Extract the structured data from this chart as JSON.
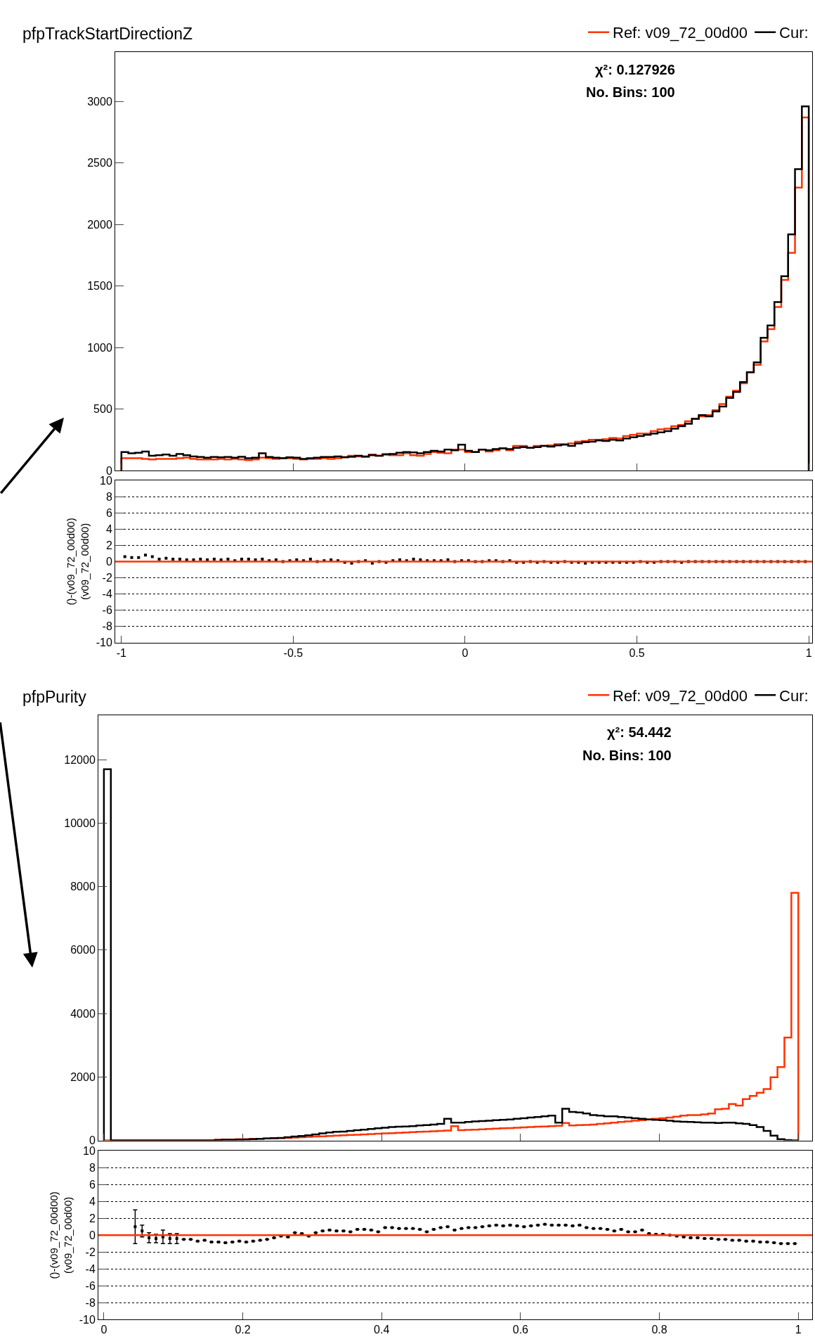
{
  "chart_data": [
    {
      "type": "histogram",
      "title": "pfpTrackStartDirectionZ",
      "legend": "top right",
      "grid": false,
      "tick_labels": "y",
      "annotations": [
        "χ²: 0.127926",
        "No. Bins: 100"
      ],
      "xlim": [
        -1.018,
        1.01
      ],
      "xticks": [
        -1,
        -0.5,
        0,
        0.5,
        1
      ],
      "ylim": [
        0,
        3400
      ],
      "yticks": [
        0,
        500,
        1000,
        1500,
        2000,
        2500,
        3000
      ],
      "bins": [
        -1,
        -0.98,
        -0.96,
        -0.94,
        -0.92,
        -0.9,
        -0.88,
        -0.86,
        -0.84,
        -0.82,
        -0.8,
        -0.78,
        -0.76,
        -0.74,
        -0.72,
        -0.7,
        -0.68,
        -0.66,
        -0.64,
        -0.62,
        -0.6,
        -0.58,
        -0.56,
        -0.54,
        -0.52,
        -0.5,
        -0.48,
        -0.46,
        -0.44,
        -0.42,
        -0.4,
        -0.38,
        -0.36,
        -0.34,
        -0.32,
        -0.3,
        -0.28,
        -0.26,
        -0.24,
        -0.22,
        -0.2,
        -0.18,
        -0.16,
        -0.14,
        -0.12,
        -0.1,
        -0.08,
        -0.06,
        -0.04,
        -0.02,
        0,
        0.02,
        0.04,
        0.06,
        0.08,
        0.1,
        0.12,
        0.14,
        0.16,
        0.18,
        0.2,
        0.22,
        0.24,
        0.26,
        0.28,
        0.3,
        0.32,
        0.34,
        0.36,
        0.38,
        0.4,
        0.42,
        0.44,
        0.46,
        0.48,
        0.5,
        0.52,
        0.54,
        0.56,
        0.58,
        0.6,
        0.62,
        0.64,
        0.66,
        0.68,
        0.7,
        0.72,
        0.74,
        0.76,
        0.78,
        0.8,
        0.82,
        0.84,
        0.86,
        0.88,
        0.9,
        0.92,
        0.94,
        0.96,
        0.98,
        1
      ],
      "series": [
        {
          "name": "Ref: v09_72_00d00",
          "color": "#ff3300",
          "values": [
            100,
            100,
            100,
            95,
            90,
            95,
            95,
            95,
            100,
            105,
            95,
            90,
            90,
            90,
            95,
            90,
            95,
            90,
            85,
            90,
            105,
            100,
            95,
            100,
            100,
            95,
            90,
            95,
            95,
            100,
            95,
            100,
            110,
            120,
            115,
            110,
            130,
            120,
            135,
            125,
            125,
            140,
            125,
            120,
            135,
            150,
            145,
            140,
            170,
            170,
            150,
            150,
            170,
            155,
            165,
            180,
            165,
            200,
            200,
            185,
            200,
            200,
            205,
            215,
            215,
            220,
            235,
            240,
            250,
            250,
            255,
            265,
            260,
            280,
            290,
            300,
            300,
            320,
            335,
            340,
            360,
            370,
            400,
            420,
            440,
            450,
            490,
            540,
            600,
            650,
            710,
            800,
            860,
            1050,
            1150,
            1330,
            1550,
            1770,
            2300,
            2870
          ]
        },
        {
          "name": "Cur:",
          "color": "#000000",
          "values": [
            150,
            140,
            145,
            155,
            120,
            125,
            130,
            120,
            135,
            125,
            115,
            110,
            105,
            110,
            108,
            110,
            105,
            112,
            100,
            105,
            140,
            110,
            105,
            100,
            108,
            105,
            95,
            100,
            105,
            110,
            110,
            115,
            108,
            112,
            120,
            115,
            125,
            120,
            130,
            135,
            145,
            150,
            148,
            140,
            150,
            160,
            155,
            170,
            165,
            210,
            160,
            150,
            170,
            165,
            175,
            180,
            175,
            185,
            190,
            185,
            190,
            200,
            195,
            205,
            210,
            200,
            220,
            230,
            235,
            245,
            240,
            250,
            245,
            260,
            270,
            280,
            290,
            300,
            310,
            320,
            340,
            360,
            380,
            420,
            450,
            440,
            480,
            520,
            590,
            640,
            720,
            800,
            880,
            1080,
            1180,
            1370,
            1580,
            1920,
            2450,
            2960
          ]
        }
      ]
    },
    {
      "type": "scatter",
      "marker": "square",
      "grid": "y",
      "ylabel": "()-(v09_72_00d00)\n(v09_72_00d00)",
      "xlim": [
        -1.018,
        1.01
      ],
      "xticks": [
        -1,
        -0.5,
        0,
        0.5,
        1
      ],
      "ylim": [
        -10,
        10
      ],
      "yticks": [
        -10,
        -8,
        -6,
        -4,
        -2,
        0,
        2,
        4,
        6,
        8,
        10
      ],
      "ref_lines": [
        {
          "axis": "y",
          "value": 0,
          "color": "#ff3300"
        }
      ],
      "x": [
        -0.99,
        -0.97,
        -0.95,
        -0.93,
        -0.91,
        -0.89,
        -0.87,
        -0.85,
        -0.83,
        -0.81,
        -0.79,
        -0.77,
        -0.75,
        -0.73,
        -0.71,
        -0.69,
        -0.67,
        -0.65,
        -0.63,
        -0.61,
        -0.59,
        -0.57,
        -0.55,
        -0.53,
        -0.51,
        -0.49,
        -0.47,
        -0.45,
        -0.43,
        -0.41,
        -0.39,
        -0.37,
        -0.35,
        -0.33,
        -0.31,
        -0.29,
        -0.27,
        -0.25,
        -0.23,
        -0.21,
        -0.19,
        -0.17,
        -0.15,
        -0.13,
        -0.11,
        -0.09,
        -0.07,
        -0.05,
        -0.03,
        -0.01,
        0.01,
        0.03,
        0.05,
        0.07,
        0.09,
        0.11,
        0.13,
        0.15,
        0.17,
        0.19,
        0.21,
        0.23,
        0.25,
        0.27,
        0.29,
        0.31,
        0.33,
        0.35,
        0.37,
        0.39,
        0.41,
        0.43,
        0.45,
        0.47,
        0.49,
        0.51,
        0.53,
        0.55,
        0.57,
        0.59,
        0.61,
        0.63,
        0.65,
        0.67,
        0.69,
        0.71,
        0.73,
        0.75,
        0.77,
        0.79,
        0.81,
        0.83,
        0.85,
        0.87,
        0.89,
        0.91,
        0.93,
        0.95,
        0.97,
        0.99
      ],
      "series": [
        {
          "color": "#000000",
          "values": [
            0.6,
            0.5,
            0.5,
            0.8,
            0.6,
            0.3,
            0.4,
            0.3,
            0.3,
            0.2,
            0.2,
            0.3,
            0.2,
            0.3,
            0.2,
            0.3,
            0.1,
            0.3,
            0.3,
            0.2,
            0.3,
            0.1,
            0.2,
            0.0,
            0.1,
            0.2,
            0.1,
            0.3,
            0.0,
            0.1,
            0.2,
            0.1,
            -0.1,
            -0.2,
            0.0,
            0.1,
            -0.2,
            0.0,
            -0.1,
            0.1,
            0.2,
            0.1,
            0.3,
            0.2,
            0.1,
            0.1,
            0.1,
            0.2,
            0.0,
            0.1,
            0.1,
            0.0,
            0.0,
            0.1,
            0.1,
            0.0,
            0.1,
            -0.1,
            -0.1,
            0.0,
            -0.1,
            0.0,
            -0.1,
            -0.1,
            0.0,
            -0.1,
            -0.1,
            -0.2,
            -0.1,
            -0.1,
            -0.1,
            -0.1,
            -0.1,
            -0.1,
            -0.1,
            0.0,
            -0.1,
            -0.1,
            0.0,
            0.0,
            0.0,
            -0.1,
            0.0,
            0.0,
            0.0,
            0.0,
            0.0,
            0.0,
            0.0,
            0.0,
            0.0,
            0.0,
            0.0,
            0.0,
            0.0,
            0.0,
            0.0,
            0.0,
            0.0,
            0.0
          ]
        }
      ]
    },
    {
      "type": "histogram",
      "title": "pfpPurity",
      "legend": "top right",
      "grid": false,
      "tick_labels": "y",
      "annotations": [
        "χ²: 54.442",
        "No. Bins: 100"
      ],
      "xlim": [
        -0.008,
        1.02
      ],
      "xticks": [
        0,
        0.2,
        0.4,
        0.6,
        0.8,
        1
      ],
      "ylim": [
        0,
        13400
      ],
      "yticks": [
        0,
        2000,
        4000,
        6000,
        8000,
        10000,
        12000
      ],
      "bins": [
        0,
        0.01,
        0.02,
        0.03,
        0.04,
        0.05,
        0.06,
        0.07,
        0.08,
        0.09,
        0.1,
        0.11,
        0.12,
        0.13,
        0.14,
        0.15,
        0.16,
        0.17,
        0.18,
        0.19,
        0.2,
        0.21,
        0.22,
        0.23,
        0.24,
        0.25,
        0.26,
        0.27,
        0.28,
        0.29,
        0.3,
        0.31,
        0.32,
        0.33,
        0.34,
        0.35,
        0.36,
        0.37,
        0.38,
        0.39,
        0.4,
        0.41,
        0.42,
        0.43,
        0.44,
        0.45,
        0.46,
        0.47,
        0.48,
        0.49,
        0.5,
        0.51,
        0.52,
        0.53,
        0.54,
        0.55,
        0.56,
        0.57,
        0.58,
        0.59,
        0.6,
        0.61,
        0.62,
        0.63,
        0.64,
        0.65,
        0.66,
        0.67,
        0.68,
        0.69,
        0.7,
        0.71,
        0.72,
        0.73,
        0.74,
        0.75,
        0.76,
        0.77,
        0.78,
        0.79,
        0.8,
        0.81,
        0.82,
        0.83,
        0.84,
        0.85,
        0.86,
        0.87,
        0.88,
        0.89,
        0.9,
        0.91,
        0.92,
        0.93,
        0.94,
        0.95,
        0.96,
        0.97,
        0.98,
        0.99,
        1.0
      ],
      "series": [
        {
          "name": "Ref: v09_72_00d00",
          "color": "#ff3300",
          "values": [
            0,
            0,
            0,
            0,
            0,
            0,
            0,
            0,
            0,
            0,
            0,
            0,
            0,
            0,
            0,
            0,
            20,
            30,
            30,
            40,
            40,
            50,
            50,
            60,
            60,
            70,
            80,
            90,
            100,
            110,
            120,
            130,
            140,
            150,
            160,
            170,
            180,
            190,
            200,
            210,
            220,
            230,
            240,
            250,
            260,
            270,
            280,
            290,
            300,
            310,
            450,
            320,
            330,
            340,
            350,
            360,
            370,
            380,
            390,
            400,
            410,
            420,
            430,
            440,
            450,
            460,
            550,
            470,
            480,
            490,
            500,
            520,
            540,
            560,
            580,
            600,
            620,
            640,
            660,
            680,
            700,
            720,
            750,
            780,
            800,
            800,
            820,
            850,
            980,
            1000,
            1150,
            1100,
            1300,
            1400,
            1500,
            1620,
            1990,
            2310,
            3240,
            7800
          ]
        },
        {
          "name": "Cur:",
          "color": "#000000",
          "values": [
            11700,
            0,
            0,
            0,
            0,
            0,
            0,
            0,
            0,
            0,
            0,
            0,
            0,
            0,
            0,
            0,
            10,
            20,
            20,
            20,
            30,
            40,
            50,
            60,
            70,
            80,
            100,
            120,
            140,
            160,
            190,
            220,
            250,
            270,
            280,
            300,
            320,
            340,
            360,
            380,
            400,
            420,
            430,
            440,
            450,
            470,
            480,
            500,
            520,
            680,
            560,
            560,
            580,
            600,
            610,
            620,
            640,
            650,
            660,
            680,
            700,
            720,
            740,
            760,
            780,
            560,
            1000,
            900,
            880,
            850,
            800,
            780,
            760,
            760,
            740,
            720,
            700,
            680,
            660,
            650,
            640,
            620,
            600,
            590,
            580,
            570,
            560,
            560,
            550,
            560,
            560,
            540,
            520,
            480,
            420,
            300,
            150,
            40,
            10,
            0
          ]
        }
      ]
    },
    {
      "type": "scatter",
      "marker": "square",
      "grid": "y",
      "ylabel": "()-(v09_72_00d00)\n(v09_72_00d00)",
      "xlim": [
        -0.008,
        1.02
      ],
      "xticks": [
        0,
        0.2,
        0.4,
        0.6,
        0.8,
        1
      ],
      "ylim": [
        -10,
        10
      ],
      "yticks": [
        -10,
        -8,
        -6,
        -4,
        -2,
        0,
        2,
        4,
        6,
        8,
        10
      ],
      "ref_lines": [
        {
          "axis": "y",
          "value": 0,
          "color": "#ff3300"
        }
      ],
      "x": [
        0.045,
        0.055,
        0.065,
        0.075,
        0.085,
        0.095,
        0.105,
        0.115,
        0.125,
        0.135,
        0.145,
        0.155,
        0.165,
        0.175,
        0.185,
        0.195,
        0.205,
        0.215,
        0.225,
        0.235,
        0.245,
        0.255,
        0.265,
        0.275,
        0.285,
        0.295,
        0.305,
        0.315,
        0.325,
        0.335,
        0.345,
        0.355,
        0.365,
        0.375,
        0.385,
        0.395,
        0.405,
        0.415,
        0.425,
        0.435,
        0.445,
        0.455,
        0.465,
        0.475,
        0.485,
        0.495,
        0.505,
        0.515,
        0.525,
        0.535,
        0.545,
        0.555,
        0.565,
        0.575,
        0.585,
        0.595,
        0.605,
        0.615,
        0.625,
        0.635,
        0.645,
        0.655,
        0.665,
        0.675,
        0.685,
        0.695,
        0.705,
        0.715,
        0.725,
        0.735,
        0.745,
        0.755,
        0.765,
        0.775,
        0.785,
        0.795,
        0.805,
        0.815,
        0.825,
        0.835,
        0.845,
        0.855,
        0.865,
        0.875,
        0.885,
        0.895,
        0.905,
        0.915,
        0.925,
        0.935,
        0.945,
        0.955,
        0.965,
        0.975,
        0.985,
        0.995
      ],
      "series": [
        {
          "color": "#000000",
          "values": [
            1.0,
            0.5,
            -0.3,
            -0.4,
            -0.2,
            -0.4,
            -0.4,
            -0.5,
            -0.5,
            -0.7,
            -0.6,
            -0.8,
            -0.8,
            -0.9,
            -0.8,
            -0.7,
            -0.8,
            -0.7,
            -0.6,
            -0.5,
            -0.3,
            -0.1,
            -0.2,
            0.3,
            0.2,
            -0.1,
            0.3,
            0.5,
            0.6,
            0.5,
            0.5,
            0.4,
            0.7,
            0.7,
            0.6,
            0.4,
            0.9,
            0.9,
            0.8,
            0.8,
            0.8,
            0.7,
            0.4,
            0.7,
            0.9,
            1.0,
            0.6,
            0.8,
            0.9,
            0.9,
            1.0,
            1.1,
            1.2,
            1.1,
            1.2,
            1.1,
            1.0,
            1.1,
            1.2,
            1.3,
            1.2,
            1.2,
            1.2,
            1.1,
            1.2,
            0.9,
            0.8,
            0.8,
            0.7,
            0.5,
            0.7,
            0.4,
            0.4,
            0.6,
            0.2,
            0.1,
            0.1,
            0.0,
            -0.1,
            -0.2,
            -0.3,
            -0.3,
            -0.4,
            -0.4,
            -0.5,
            -0.5,
            -0.6,
            -0.6,
            -0.7,
            -0.7,
            -0.8,
            -0.8,
            -0.9,
            -1.0,
            -1.0,
            -1.0
          ],
          "errors": [
            2.0,
            0.7,
            0.6,
            0.5,
            0.8,
            0.6,
            0.6,
            null,
            null,
            null,
            null,
            null,
            null,
            null,
            null,
            null,
            null,
            null,
            null,
            null,
            null,
            null,
            null,
            null,
            null,
            null,
            null,
            null,
            null,
            null,
            null,
            null,
            null,
            null,
            null,
            null,
            null,
            null,
            null,
            null,
            null,
            null,
            null,
            null,
            null,
            null,
            null,
            null,
            null,
            null,
            null,
            null,
            null,
            null,
            null,
            null,
            null,
            null,
            null,
            null,
            null,
            null,
            null,
            null,
            null,
            null,
            null,
            null,
            null,
            null,
            null,
            null,
            null,
            null,
            null,
            null,
            null,
            null,
            null,
            null,
            null,
            null,
            null,
            null,
            null,
            null,
            null,
            null,
            null,
            null,
            null,
            null,
            null,
            null,
            null,
            null
          ]
        }
      ]
    }
  ]
}
